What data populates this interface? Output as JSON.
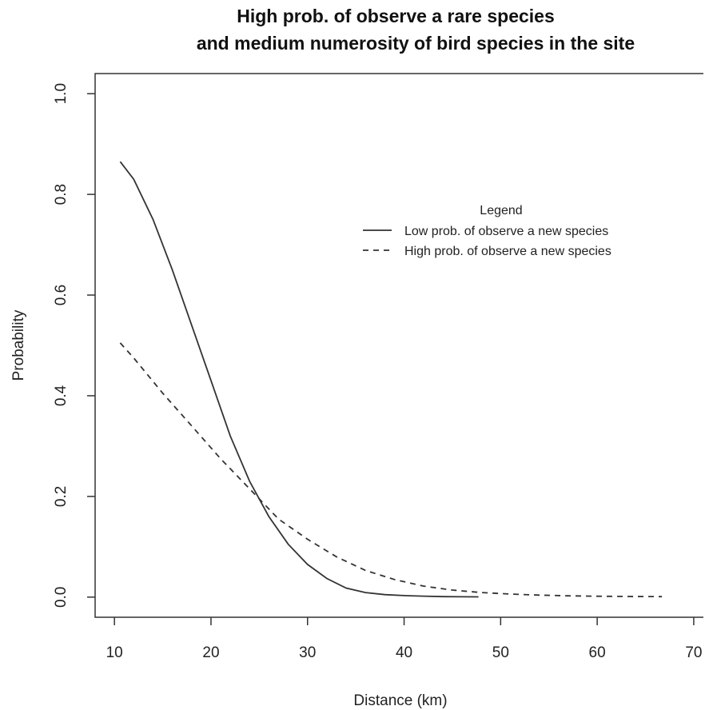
{
  "chart_data": {
    "type": "line",
    "title_lines": [
      "High prob. of observe a rare species",
      "and medium numerosity of bird species in the site"
    ],
    "xlabel": "Distance (km)",
    "ylabel": "Probability",
    "xlim": [
      8,
      71
    ],
    "ylim": [
      -0.04,
      1.04
    ],
    "xticks": [
      10,
      20,
      30,
      40,
      50,
      60,
      70
    ],
    "xtick_labels": [
      "10",
      "20",
      "30",
      "40",
      "50",
      "60",
      "70"
    ],
    "yticks": [
      0.0,
      0.2,
      0.4,
      0.6,
      0.8,
      1.0
    ],
    "ytick_labels": [
      "0.0",
      "0.2",
      "0.4",
      "0.6",
      "0.8",
      "1.0"
    ],
    "grid": false,
    "legend": {
      "title": "Legend",
      "placement": "top-right",
      "entries": [
        "Low prob. of observe a new species",
        "High prob. of observe a new species"
      ]
    },
    "series": [
      {
        "name": "Low prob. of observe a new species",
        "dash": "solid",
        "x": [
          10.6,
          12,
          14,
          16,
          18,
          20,
          22,
          24,
          26,
          28,
          30,
          32,
          34,
          36,
          38,
          40,
          42,
          44,
          46,
          47.7
        ],
        "y": [
          0.865,
          0.83,
          0.75,
          0.65,
          0.54,
          0.43,
          0.32,
          0.23,
          0.16,
          0.105,
          0.065,
          0.037,
          0.018,
          0.009,
          0.005,
          0.003,
          0.002,
          0.001,
          0.0007,
          0.0005
        ]
      },
      {
        "name": "High prob. of observe a new species",
        "dash": "dashed",
        "x": [
          10.6,
          12,
          15,
          18,
          21,
          24,
          27,
          30,
          33,
          36,
          39,
          42,
          45,
          48,
          51,
          54,
          57,
          60,
          63,
          66.7
        ],
        "y": [
          0.505,
          0.475,
          0.405,
          0.34,
          0.275,
          0.215,
          0.155,
          0.115,
          0.08,
          0.053,
          0.035,
          0.022,
          0.014,
          0.009,
          0.006,
          0.004,
          0.0025,
          0.0018,
          0.0013,
          0.001
        ]
      }
    ]
  }
}
